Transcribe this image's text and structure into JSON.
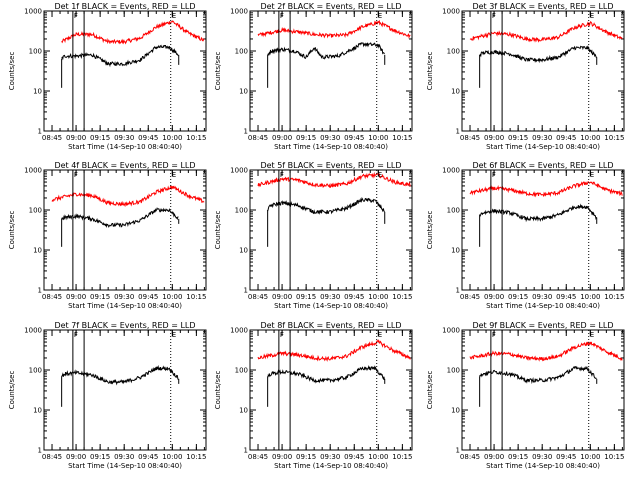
{
  "figure": {
    "colors": {
      "events": "#000000",
      "lld": "#ff0000",
      "axes": "#000000",
      "background": "#ffffff"
    }
  },
  "chart_data": [
    {
      "type": "line",
      "title": "Det 1f BLACK = Events, RED = LLD",
      "xlabel": "Start Time (14-Sep-10 08:40:40)",
      "ylabel": "Counts/sec",
      "y_scale": "log",
      "ylim": [
        1,
        1000
      ],
      "xlim": [
        "08:40",
        "10:21"
      ],
      "x_ticks": [
        "08:45",
        "09:00",
        "09:15",
        "09:30",
        "09:45",
        "10:00",
        "10:15"
      ],
      "y_ticks": [
        "1",
        "10",
        "100",
        "1000"
      ],
      "markers": [
        {
          "time": "08:58",
          "label": "F",
          "style": "solid"
        },
        {
          "time": "09:05",
          "label": "",
          "style": "solid"
        },
        {
          "time": "09:59",
          "label": "E",
          "style": "dotted"
        }
      ],
      "series": [
        {
          "color": "#ff0000",
          "x": [
            "08:51",
            "09:00",
            "09:10",
            "09:20",
            "09:30",
            "09:40",
            "09:50",
            "10:00",
            "10:10",
            "10:20"
          ],
          "y": [
            170,
            260,
            260,
            170,
            170,
            210,
            400,
            550,
            280,
            180
          ]
        },
        {
          "color": "#000000",
          "x": [
            "08:51",
            "08:53",
            "09:00",
            "09:10",
            "09:20",
            "09:30",
            "09:40",
            "09:50",
            "09:58",
            "10:04"
          ],
          "y": [
            65,
            75,
            75,
            80,
            48,
            48,
            60,
            125,
            125,
            80
          ]
        }
      ]
    },
    {
      "type": "line",
      "title": "Det 2f BLACK = Events, RED = LLD",
      "xlabel": "Start Time (14-Sep-10 08:40:40)",
      "ylabel": "Counts/sec",
      "y_scale": "log",
      "ylim": [
        1,
        1000
      ],
      "xlim": [
        "08:40",
        "10:21"
      ],
      "x_ticks": [
        "08:45",
        "09:00",
        "09:15",
        "09:30",
        "09:45",
        "10:00",
        "10:15"
      ],
      "y_ticks": [
        "1",
        "10",
        "100",
        "1000"
      ],
      "markers": [
        {
          "time": "08:58",
          "label": "F",
          "style": "solid"
        },
        {
          "time": "09:05",
          "label": "",
          "style": "solid"
        },
        {
          "time": "09:59",
          "label": "E",
          "style": "dotted"
        }
      ],
      "series": [
        {
          "color": "#ff0000",
          "x": [
            "08:45",
            "09:00",
            "09:10",
            "09:20",
            "09:30",
            "09:40",
            "09:50",
            "10:00",
            "10:10",
            "10:20"
          ],
          "y": [
            250,
            330,
            300,
            260,
            240,
            250,
            400,
            520,
            330,
            230
          ]
        },
        {
          "color": "#000000",
          "x": [
            "08:51",
            "08:53",
            "09:00",
            "09:08",
            "09:15",
            "09:20",
            "09:25",
            "09:35",
            "09:50",
            "10:00",
            "10:04"
          ],
          "y": [
            80,
            100,
            110,
            100,
            70,
            120,
            70,
            75,
            150,
            140,
            80
          ]
        }
      ]
    },
    {
      "type": "line",
      "title": "Det 3f BLACK = Events, RED = LLD",
      "xlabel": "Start Time (14-Sep-10 08:40:40)",
      "ylabel": "Counts/sec",
      "y_scale": "log",
      "ylim": [
        1,
        1000
      ],
      "xlim": [
        "08:40",
        "10:21"
      ],
      "x_ticks": [
        "08:45",
        "09:00",
        "09:15",
        "09:30",
        "09:45",
        "10:00",
        "10:15"
      ],
      "y_ticks": [
        "1",
        "10",
        "100",
        "1000"
      ],
      "markers": [
        {
          "time": "08:58",
          "label": "F",
          "style": "solid"
        },
        {
          "time": "09:05",
          "label": "",
          "style": "solid"
        },
        {
          "time": "09:59",
          "label": "E",
          "style": "dotted"
        }
      ],
      "series": [
        {
          "color": "#ff0000",
          "x": [
            "08:45",
            "09:00",
            "09:10",
            "09:20",
            "09:30",
            "09:40",
            "09:50",
            "10:00",
            "10:10",
            "10:20"
          ],
          "y": [
            200,
            280,
            260,
            200,
            190,
            220,
            380,
            500,
            300,
            200
          ]
        },
        {
          "color": "#000000",
          "x": [
            "08:51",
            "08:53",
            "09:00",
            "09:10",
            "09:20",
            "09:30",
            "09:40",
            "09:50",
            "09:58",
            "10:04"
          ],
          "y": [
            80,
            90,
            95,
            85,
            60,
            60,
            70,
            120,
            120,
            70
          ]
        }
      ]
    },
    {
      "type": "line",
      "title": "Det 4f BLACK = Events, RED = LLD",
      "xlabel": "Start Time (14-Sep-10 08:40:40)",
      "ylabel": "Counts/sec",
      "y_scale": "log",
      "ylim": [
        1,
        1000
      ],
      "xlim": [
        "08:40",
        "10:21"
      ],
      "x_ticks": [
        "08:45",
        "09:00",
        "09:15",
        "09:30",
        "09:45",
        "10:00",
        "10:15"
      ],
      "y_ticks": [
        "1",
        "10",
        "100",
        "1000"
      ],
      "markers": [
        {
          "time": "08:58",
          "label": "F",
          "style": "solid"
        },
        {
          "time": "09:05",
          "label": "",
          "style": "solid"
        },
        {
          "time": "09:59",
          "label": "E",
          "style": "dotted"
        }
      ],
      "series": [
        {
          "color": "#ff0000",
          "x": [
            "08:45",
            "09:00",
            "09:10",
            "09:20",
            "09:30",
            "09:40",
            "09:50",
            "10:00",
            "10:10",
            "10:20"
          ],
          "y": [
            180,
            250,
            230,
            150,
            140,
            160,
            280,
            380,
            230,
            160
          ]
        },
        {
          "color": "#000000",
          "x": [
            "08:51",
            "08:53",
            "09:00",
            "09:10",
            "09:20",
            "09:30",
            "09:40",
            "09:50",
            "09:58",
            "10:04"
          ],
          "y": [
            60,
            65,
            70,
            60,
            42,
            42,
            55,
            100,
            100,
            60
          ]
        }
      ]
    },
    {
      "type": "line",
      "title": "Det 5f BLACK = Events, RED = LLD",
      "xlabel": "Start Time (14-Sep-10 08:40:40)",
      "ylabel": "Counts/sec",
      "y_scale": "log",
      "ylim": [
        1,
        1000
      ],
      "xlim": [
        "08:40",
        "10:21"
      ],
      "x_ticks": [
        "08:45",
        "09:00",
        "09:15",
        "09:30",
        "09:45",
        "10:00",
        "10:15"
      ],
      "y_ticks": [
        "1",
        "10",
        "100",
        "1000"
      ],
      "markers": [
        {
          "time": "08:58",
          "label": "F",
          "style": "solid"
        },
        {
          "time": "09:05",
          "label": "",
          "style": "solid"
        },
        {
          "time": "09:59",
          "label": "E",
          "style": "dotted"
        }
      ],
      "series": [
        {
          "color": "#ff0000",
          "x": [
            "08:45",
            "09:00",
            "09:10",
            "09:20",
            "09:30",
            "09:40",
            "09:50",
            "10:00",
            "10:10",
            "10:20"
          ],
          "y": [
            420,
            600,
            560,
            430,
            400,
            450,
            700,
            750,
            500,
            420
          ]
        },
        {
          "color": "#000000",
          "x": [
            "08:51",
            "08:53",
            "09:00",
            "09:10",
            "09:20",
            "09:30",
            "09:40",
            "09:50",
            "09:58",
            "10:04"
          ],
          "y": [
            100,
            130,
            150,
            130,
            90,
            90,
            110,
            180,
            170,
            90
          ]
        }
      ]
    },
    {
      "type": "line",
      "title": "Det 6f BLACK = Events, RED = LLD",
      "xlabel": "Start Time (14-Sep-10 08:40:40)",
      "ylabel": "Counts/sec",
      "y_scale": "log",
      "ylim": [
        1,
        1000
      ],
      "xlim": [
        "08:40",
        "10:21"
      ],
      "x_ticks": [
        "08:45",
        "09:00",
        "09:15",
        "09:30",
        "09:45",
        "10:00",
        "10:15"
      ],
      "y_ticks": [
        "1",
        "10",
        "100",
        "1000"
      ],
      "markers": [
        {
          "time": "08:58",
          "label": "F",
          "style": "solid"
        },
        {
          "time": "09:05",
          "label": "",
          "style": "solid"
        },
        {
          "time": "09:59",
          "label": "E",
          "style": "dotted"
        }
      ],
      "series": [
        {
          "color": "#ff0000",
          "x": [
            "08:45",
            "09:00",
            "09:10",
            "09:20",
            "09:30",
            "09:40",
            "09:50",
            "10:00",
            "10:10",
            "10:20"
          ],
          "y": [
            270,
            350,
            320,
            260,
            240,
            270,
            400,
            500,
            320,
            250
          ]
        },
        {
          "color": "#000000",
          "x": [
            "08:51",
            "08:53",
            "09:00",
            "09:10",
            "09:20",
            "09:30",
            "09:40",
            "09:50",
            "09:58",
            "10:04"
          ],
          "y": [
            75,
            85,
            95,
            85,
            60,
            60,
            75,
            120,
            120,
            65
          ]
        }
      ]
    },
    {
      "type": "line",
      "title": "Det 7f BLACK = Events, RED = LLD",
      "xlabel": "Start Time (14-Sep-10 08:40:40)",
      "ylabel": "Counts/sec",
      "y_scale": "log",
      "ylim": [
        1,
        1000
      ],
      "xlim": [
        "08:40",
        "10:21"
      ],
      "x_ticks": [
        "08:45",
        "09:00",
        "09:15",
        "09:30",
        "09:45",
        "10:00",
        "10:15"
      ],
      "y_ticks": [
        "1",
        "10",
        "100",
        "1000"
      ],
      "markers": [
        {
          "time": "08:58",
          "label": "F",
          "style": "solid"
        },
        {
          "time": "09:05",
          "label": "",
          "style": "solid"
        },
        {
          "time": "09:59",
          "label": "E",
          "style": "dotted"
        }
      ],
      "series": [
        {
          "color": "#000000",
          "x": [
            "08:51",
            "08:53",
            "09:00",
            "09:10",
            "09:20",
            "09:30",
            "09:40",
            "09:50",
            "09:58",
            "10:04"
          ],
          "y": [
            70,
            80,
            85,
            75,
            50,
            50,
            65,
            110,
            110,
            60
          ]
        }
      ]
    },
    {
      "type": "line",
      "title": "Det 8f BLACK = Events, RED = LLD",
      "xlabel": "Start Time (14-Sep-10 08:40:40)",
      "ylabel": "Counts/sec",
      "y_scale": "log",
      "ylim": [
        1,
        1000
      ],
      "xlim": [
        "08:40",
        "10:21"
      ],
      "x_ticks": [
        "08:45",
        "09:00",
        "09:15",
        "09:30",
        "09:45",
        "10:00",
        "10:15"
      ],
      "y_ticks": [
        "1",
        "10",
        "100",
        "1000"
      ],
      "markers": [
        {
          "time": "08:58",
          "label": "F",
          "style": "solid"
        },
        {
          "time": "09:05",
          "label": "",
          "style": "solid"
        },
        {
          "time": "09:59",
          "label": "E",
          "style": "dotted"
        }
      ],
      "series": [
        {
          "color": "#ff0000",
          "x": [
            "08:45",
            "09:00",
            "09:10",
            "09:20",
            "09:30",
            "09:40",
            "09:50",
            "10:00",
            "10:10",
            "10:20"
          ],
          "y": [
            200,
            260,
            240,
            200,
            190,
            220,
            380,
            500,
            300,
            200
          ]
        },
        {
          "color": "#000000",
          "x": [
            "08:51",
            "08:53",
            "09:00",
            "09:10",
            "09:20",
            "09:30",
            "09:40",
            "09:50",
            "09:58",
            "10:04"
          ],
          "y": [
            70,
            80,
            90,
            80,
            55,
            55,
            65,
            110,
            110,
            60
          ]
        }
      ]
    },
    {
      "type": "line",
      "title": "Det 9f BLACK = Events, RED = LLD",
      "xlabel": "Start Time (14-Sep-10 08:40:40)",
      "ylabel": "Counts/sec",
      "y_scale": "log",
      "ylim": [
        1,
        1000
      ],
      "xlim": [
        "08:40",
        "10:21"
      ],
      "x_ticks": [
        "08:45",
        "09:00",
        "09:15",
        "09:30",
        "09:45",
        "10:00",
        "10:15"
      ],
      "y_ticks": [
        "1",
        "10",
        "100",
        "1000"
      ],
      "markers": [
        {
          "time": "08:58",
          "label": "F",
          "style": "solid"
        },
        {
          "time": "09:05",
          "label": "",
          "style": "solid"
        },
        {
          "time": "09:59",
          "label": "E",
          "style": "dotted"
        }
      ],
      "series": [
        {
          "color": "#ff0000",
          "x": [
            "08:45",
            "09:00",
            "09:10",
            "09:20",
            "09:30",
            "09:40",
            "09:50",
            "10:00",
            "10:10",
            "10:20"
          ],
          "y": [
            200,
            260,
            250,
            200,
            190,
            220,
            370,
            480,
            290,
            190
          ]
        },
        {
          "color": "#000000",
          "x": [
            "08:51",
            "08:53",
            "09:00",
            "09:10",
            "09:20",
            "09:30",
            "09:40",
            "09:50",
            "09:58",
            "10:04"
          ],
          "y": [
            70,
            80,
            90,
            80,
            55,
            55,
            65,
            110,
            110,
            60
          ]
        }
      ]
    }
  ]
}
